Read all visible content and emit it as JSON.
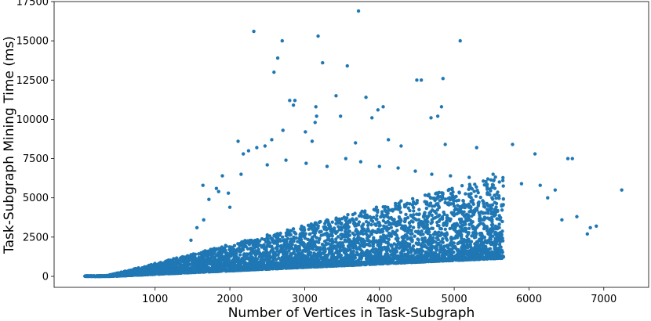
{
  "chart_data": {
    "type": "scatter",
    "title": "",
    "xlabel": "Number of Vertices in Task-Subgraph",
    "ylabel": "Task-Subgraph Mining Time (ms)",
    "xlim": [
      -350,
      7600
    ],
    "ylim": [
      -700,
      17500
    ],
    "x_ticks": [
      1000,
      2000,
      3000,
      4000,
      5000,
      6000,
      7000
    ],
    "x_tick_labels": [
      "1000",
      "2000",
      "3000",
      "4000",
      "5000",
      "6000",
      "7000"
    ],
    "y_ticks": [
      0,
      2500,
      5000,
      7500,
      10000,
      12500,
      15000,
      17500
    ],
    "y_tick_labels": [
      "0",
      "2500",
      "5000",
      "7500",
      "10000",
      "12500",
      "15000",
      "17500"
    ],
    "grid": false,
    "legend": "none",
    "point_color": "#1f77b4",
    "series": [
      {
        "points_note_free": true,
        "x": [
          3720,
          2320,
          3180,
          5080,
          2700,
          2640,
          3240,
          2590,
          3570,
          4560,
          4850,
          4500,
          2800,
          2850,
          3150,
          3420,
          2870,
          3820,
          3980,
          4050,
          3160,
          3480,
          3900,
          4690,
          4780,
          4830,
          2710,
          3010,
          3140,
          2360,
          2470,
          2560,
          3100,
          3680,
          4120,
          4290,
          4880,
          5300,
          5780,
          6080,
          6520,
          6580,
          7240,
          6440,
          6640,
          6820,
          2110,
          2180,
          2250,
          1900,
          1980,
          1640,
          1720,
          1820,
          1480,
          1560,
          1650,
          2000,
          1850,
          2150,
          2500,
          2750,
          3020,
          3300,
          3550,
          3750,
          4000,
          4250,
          4480,
          4700,
          4950,
          5200,
          5450,
          5650,
          5900,
          6150,
          6350,
          6780,
          6900,
          6250,
          5520
        ],
        "y": [
          16900,
          15600,
          15300,
          15000,
          15000,
          13900,
          13600,
          13000,
          13400,
          12500,
          12600,
          12500,
          11200,
          10900,
          10800,
          11500,
          11200,
          11400,
          10600,
          10800,
          10200,
          10200,
          10100,
          10100,
          10200,
          10800,
          9300,
          9200,
          9800,
          8200,
          8300,
          8700,
          8600,
          8500,
          8700,
          8300,
          8400,
          8200,
          8400,
          7800,
          7500,
          7500,
          5500,
          3600,
          3800,
          3100,
          8600,
          7800,
          8000,
          6400,
          5300,
          5800,
          4900,
          5600,
          2300,
          3100,
          3600,
          4400,
          5400,
          6500,
          7100,
          7400,
          7200,
          7000,
          7500,
          7300,
          7000,
          6900,
          6700,
          6500,
          6400,
          6300,
          6200,
          6100,
          5900,
          5800,
          5500,
          2700,
          3200,
          5000,
          6500
        ]
      }
    ]
  }
}
